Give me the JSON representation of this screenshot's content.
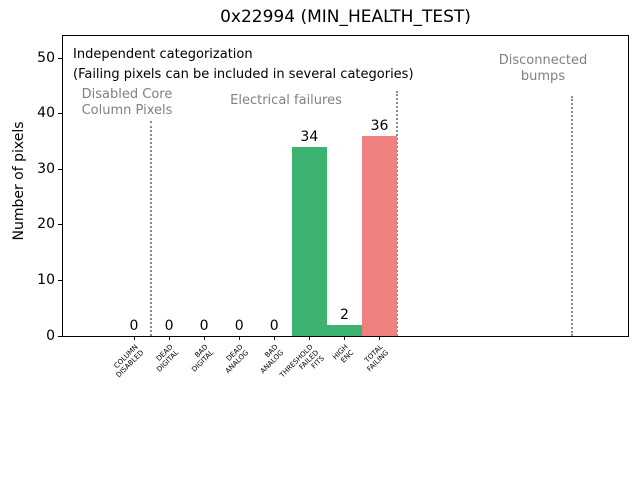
{
  "chart_data": {
    "type": "bar",
    "title": "0x22994 (MIN_HEALTH_TEST)",
    "ylabel": "Number of pixels",
    "xlabel": "",
    "ylim": [
      0,
      54
    ],
    "yticks": [
      0,
      10,
      20,
      30,
      40,
      50
    ],
    "grid": false,
    "legend_position": "none",
    "categories": [
      "COLUMN\nDISABLED",
      "DEAD\nDIGITAL",
      "BAD\nDIGITAL",
      "DEAD\nANALOG",
      "BAD\nANALOG",
      "THRESHOLD\nFAILED\nFITS",
      "HIGH\nENC",
      "TOTAL\nFAILING"
    ],
    "values": [
      0,
      0,
      0,
      0,
      0,
      34,
      2,
      36
    ],
    "value_labels": [
      "0",
      "0",
      "0",
      "0",
      "0",
      "34",
      "2",
      "36"
    ],
    "bar_colors": [
      "#3cb371",
      "#3cb371",
      "#3cb371",
      "#3cb371",
      "#3cb371",
      "#3cb371",
      "#3cb371",
      "#f08080"
    ],
    "annotations": {
      "line1": "Independent categorization",
      "line2": "(Failing pixels can be included in several categories)"
    },
    "regions": [
      {
        "label": "Disabled Core\nColumn Pixels"
      },
      {
        "label": "Electrical failures"
      },
      {
        "label": "Disconnected\nbumps"
      }
    ],
    "colors": {
      "bar_green": "#3cb371",
      "bar_red": "#f08080",
      "muted_text": "#808080",
      "separator": "#8a8a8a",
      "axis": "#000000"
    }
  }
}
